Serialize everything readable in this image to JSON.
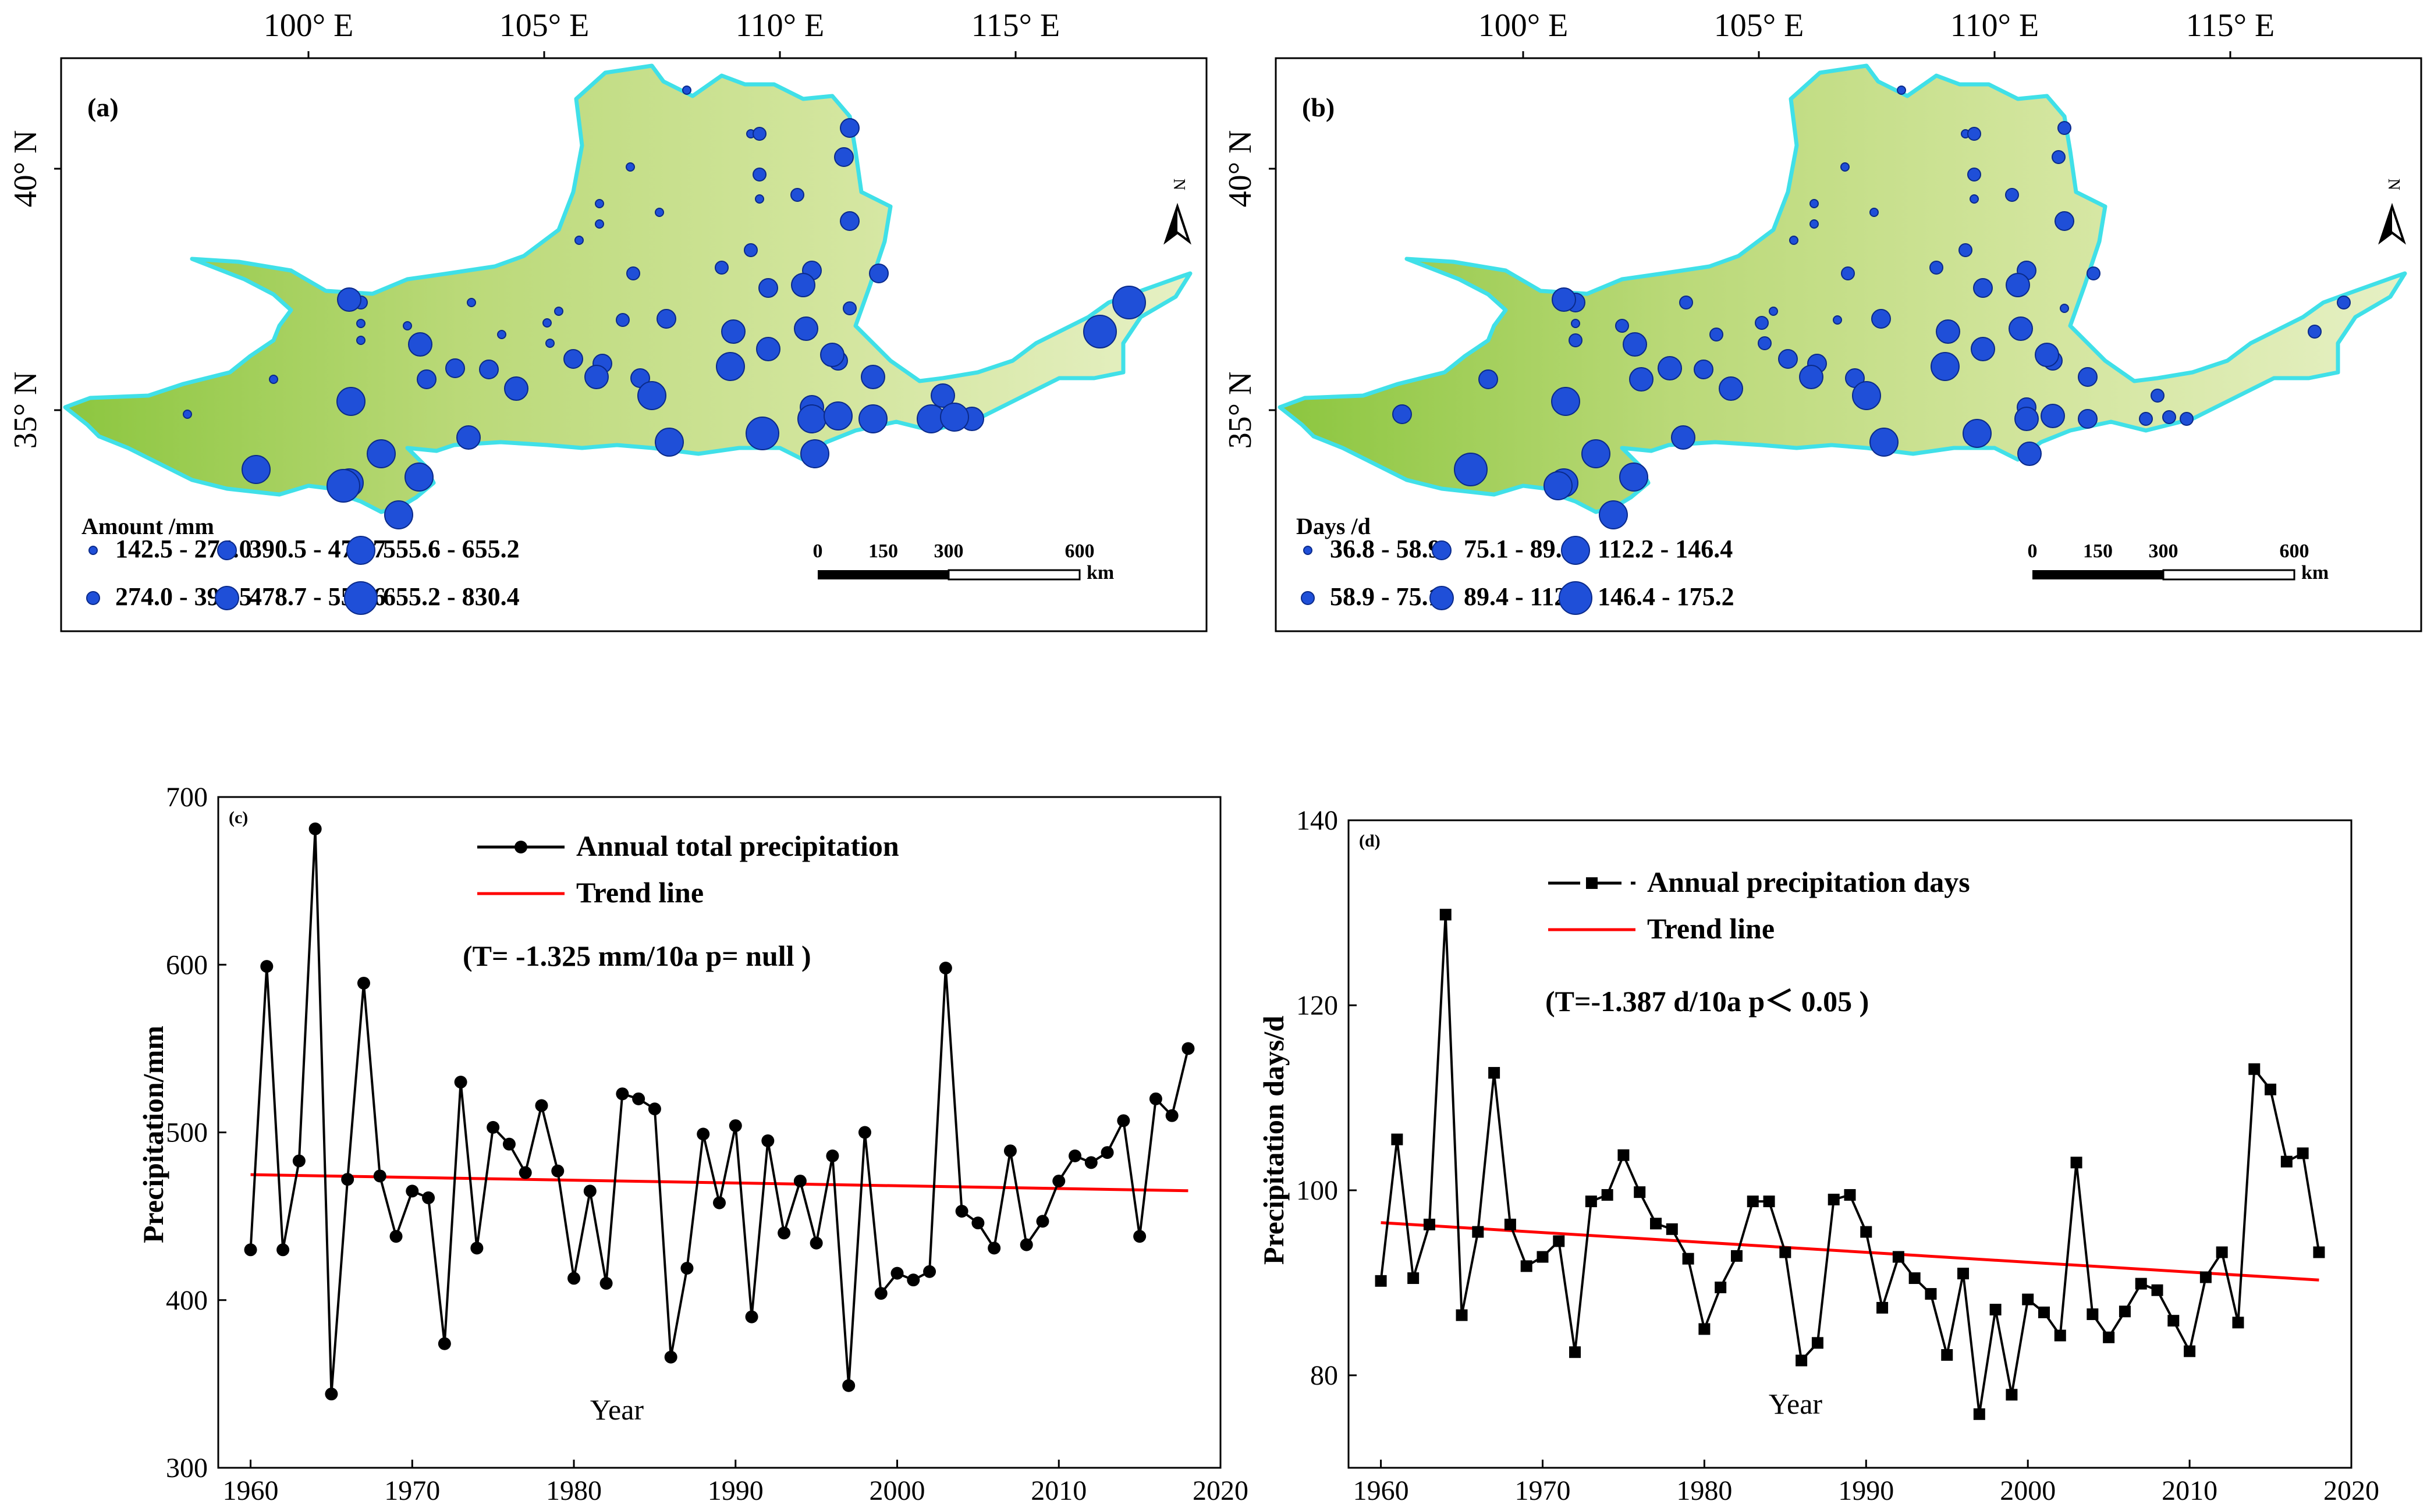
{
  "maps": [
    {
      "panel_label": "(a)",
      "lon_ticks": [
        "100° E",
        "105° E",
        "110° E",
        "115° E"
      ],
      "lat_ticks": [
        "40° N",
        "35° N"
      ],
      "north_label": "N",
      "scale": {
        "ticks": [
          "0",
          "150",
          "300",
          "600"
        ],
        "unit": "km"
      },
      "legend_title": "Amount /mm",
      "legend_classes": [
        "142.5 - 274.0",
        "274.0 - 390.5",
        "390.5 - 478.7",
        "478.7 - 555.6",
        "555.6 - 655.2",
        "655.2 - 830.4"
      ]
    },
    {
      "panel_label": "(b)",
      "lon_ticks": [
        "100° E",
        "105° E",
        "110° E",
        "115° E"
      ],
      "lat_ticks": [
        "40° N",
        "35° N"
      ],
      "north_label": "N",
      "scale": {
        "ticks": [
          "0",
          "150",
          "300",
          "600"
        ],
        "unit": "km"
      },
      "legend_title": "Days /d",
      "legend_classes": [
        "36.8 - 58.9",
        "58.9 - 75.1",
        "75.1 - 89.4",
        "89.4 - 112.2",
        "112.2 - 146.4",
        "146.4 - 175.2"
      ]
    }
  ],
  "colors": {
    "basin_fill": "#c9df8a",
    "basin_edge": "#40e0e8",
    "station": "#1f4fd8",
    "series": "#000000",
    "trend": "#ff0000"
  },
  "chart_data": [
    {
      "type": "line",
      "panel_label": "(c)",
      "xlabel": "Year",
      "ylabel": "Precipitation/mm",
      "xlim": [
        1958,
        2020
      ],
      "ylim": [
        300,
        700
      ],
      "xticks": [
        1960,
        1970,
        1980,
        1990,
        2000,
        2010,
        2020
      ],
      "yticks": [
        300,
        400,
        500,
        600,
        700
      ],
      "annotation": "(T= -1.325 mm/10a  p= null )",
      "legend": [
        "Annual total precipitation",
        "Trend line"
      ],
      "marker": "circle",
      "x": [
        1960,
        1961,
        1962,
        1963,
        1964,
        1965,
        1966,
        1967,
        1968,
        1969,
        1970,
        1971,
        1972,
        1973,
        1974,
        1975,
        1976,
        1977,
        1978,
        1979,
        1980,
        1981,
        1982,
        1983,
        1984,
        1985,
        1986,
        1987,
        1988,
        1989,
        1990,
        1991,
        1992,
        1993,
        1994,
        1995,
        1996,
        1997,
        1998,
        1999,
        2000,
        2001,
        2002,
        2003,
        2004,
        2005,
        2006,
        2007,
        2008,
        2009,
        2010,
        2011,
        2012,
        2013,
        2014,
        2015,
        2016,
        2017,
        2018
      ],
      "y": [
        430,
        599,
        430,
        483,
        681,
        344,
        472,
        589,
        474,
        438,
        465,
        461,
        374,
        530,
        431,
        503,
        493,
        476,
        516,
        477,
        413,
        465,
        410,
        523,
        520,
        514,
        366,
        419,
        499,
        458,
        504,
        390,
        495,
        440,
        471,
        434,
        486,
        349,
        500,
        404,
        416,
        412,
        417,
        598,
        453,
        446,
        431,
        489,
        433,
        447,
        471,
        486,
        482,
        488,
        507,
        438,
        520,
        510,
        550
      ],
      "series": [
        {
          "name": "Annual total precipitation"
        },
        {
          "name": "Trend line",
          "x": [
            1960,
            2018
          ],
          "y": [
            474.8,
            465.2
          ]
        }
      ]
    },
    {
      "type": "line",
      "panel_label": "(d)",
      "xlabel": "Year",
      "ylabel": "Precipitation days/d",
      "xlim": [
        1958,
        2020
      ],
      "ylim": [
        70,
        140
      ],
      "xticks": [
        1960,
        1970,
        1980,
        1990,
        2000,
        2010,
        2020
      ],
      "yticks": [
        80,
        100,
        120,
        140
      ],
      "annotation": "(T=-1.387 d/10a  p＜ 0.05 )",
      "legend": [
        "Annual precipitation days",
        "Trend line"
      ],
      "marker": "square",
      "x": [
        1960,
        1961,
        1962,
        1963,
        1964,
        1965,
        1966,
        1967,
        1968,
        1969,
        1970,
        1971,
        1972,
        1973,
        1974,
        1975,
        1976,
        1977,
        1978,
        1979,
        1980,
        1981,
        1982,
        1983,
        1984,
        1985,
        1986,
        1987,
        1988,
        1989,
        1990,
        1991,
        1992,
        1993,
        1994,
        1995,
        1996,
        1997,
        1998,
        1999,
        2000,
        2001,
        2002,
        2003,
        2004,
        2005,
        2006,
        2007,
        2008,
        2009,
        2010,
        2011,
        2012,
        2013,
        2014,
        2015,
        2016,
        2017,
        2018
      ],
      "y": [
        90.2,
        105.5,
        90.5,
        96.3,
        129.8,
        86.5,
        95.5,
        112.7,
        96.3,
        91.8,
        92.8,
        94.5,
        82.5,
        98.8,
        99.5,
        103.8,
        99.8,
        96.4,
        95.8,
        92.6,
        85.0,
        89.5,
        92.9,
        98.8,
        98.8,
        93.3,
        81.6,
        83.5,
        99.0,
        99.5,
        95.5,
        87.3,
        92.8,
        90.5,
        88.8,
        82.2,
        91.0,
        75.8,
        87.1,
        77.9,
        88.2,
        86.8,
        84.3,
        103.0,
        86.6,
        84.1,
        86.9,
        89.9,
        89.2,
        85.9,
        82.6,
        90.6,
        93.3,
        85.7,
        113.1,
        110.9,
        103.1,
        104.0,
        93.3
      ],
      "series": [
        {
          "name": "Annual precipitation days"
        },
        {
          "name": "Trend line",
          "x": [
            1960,
            2018
          ],
          "y": [
            96.5,
            90.3
          ]
        }
      ]
    }
  ]
}
